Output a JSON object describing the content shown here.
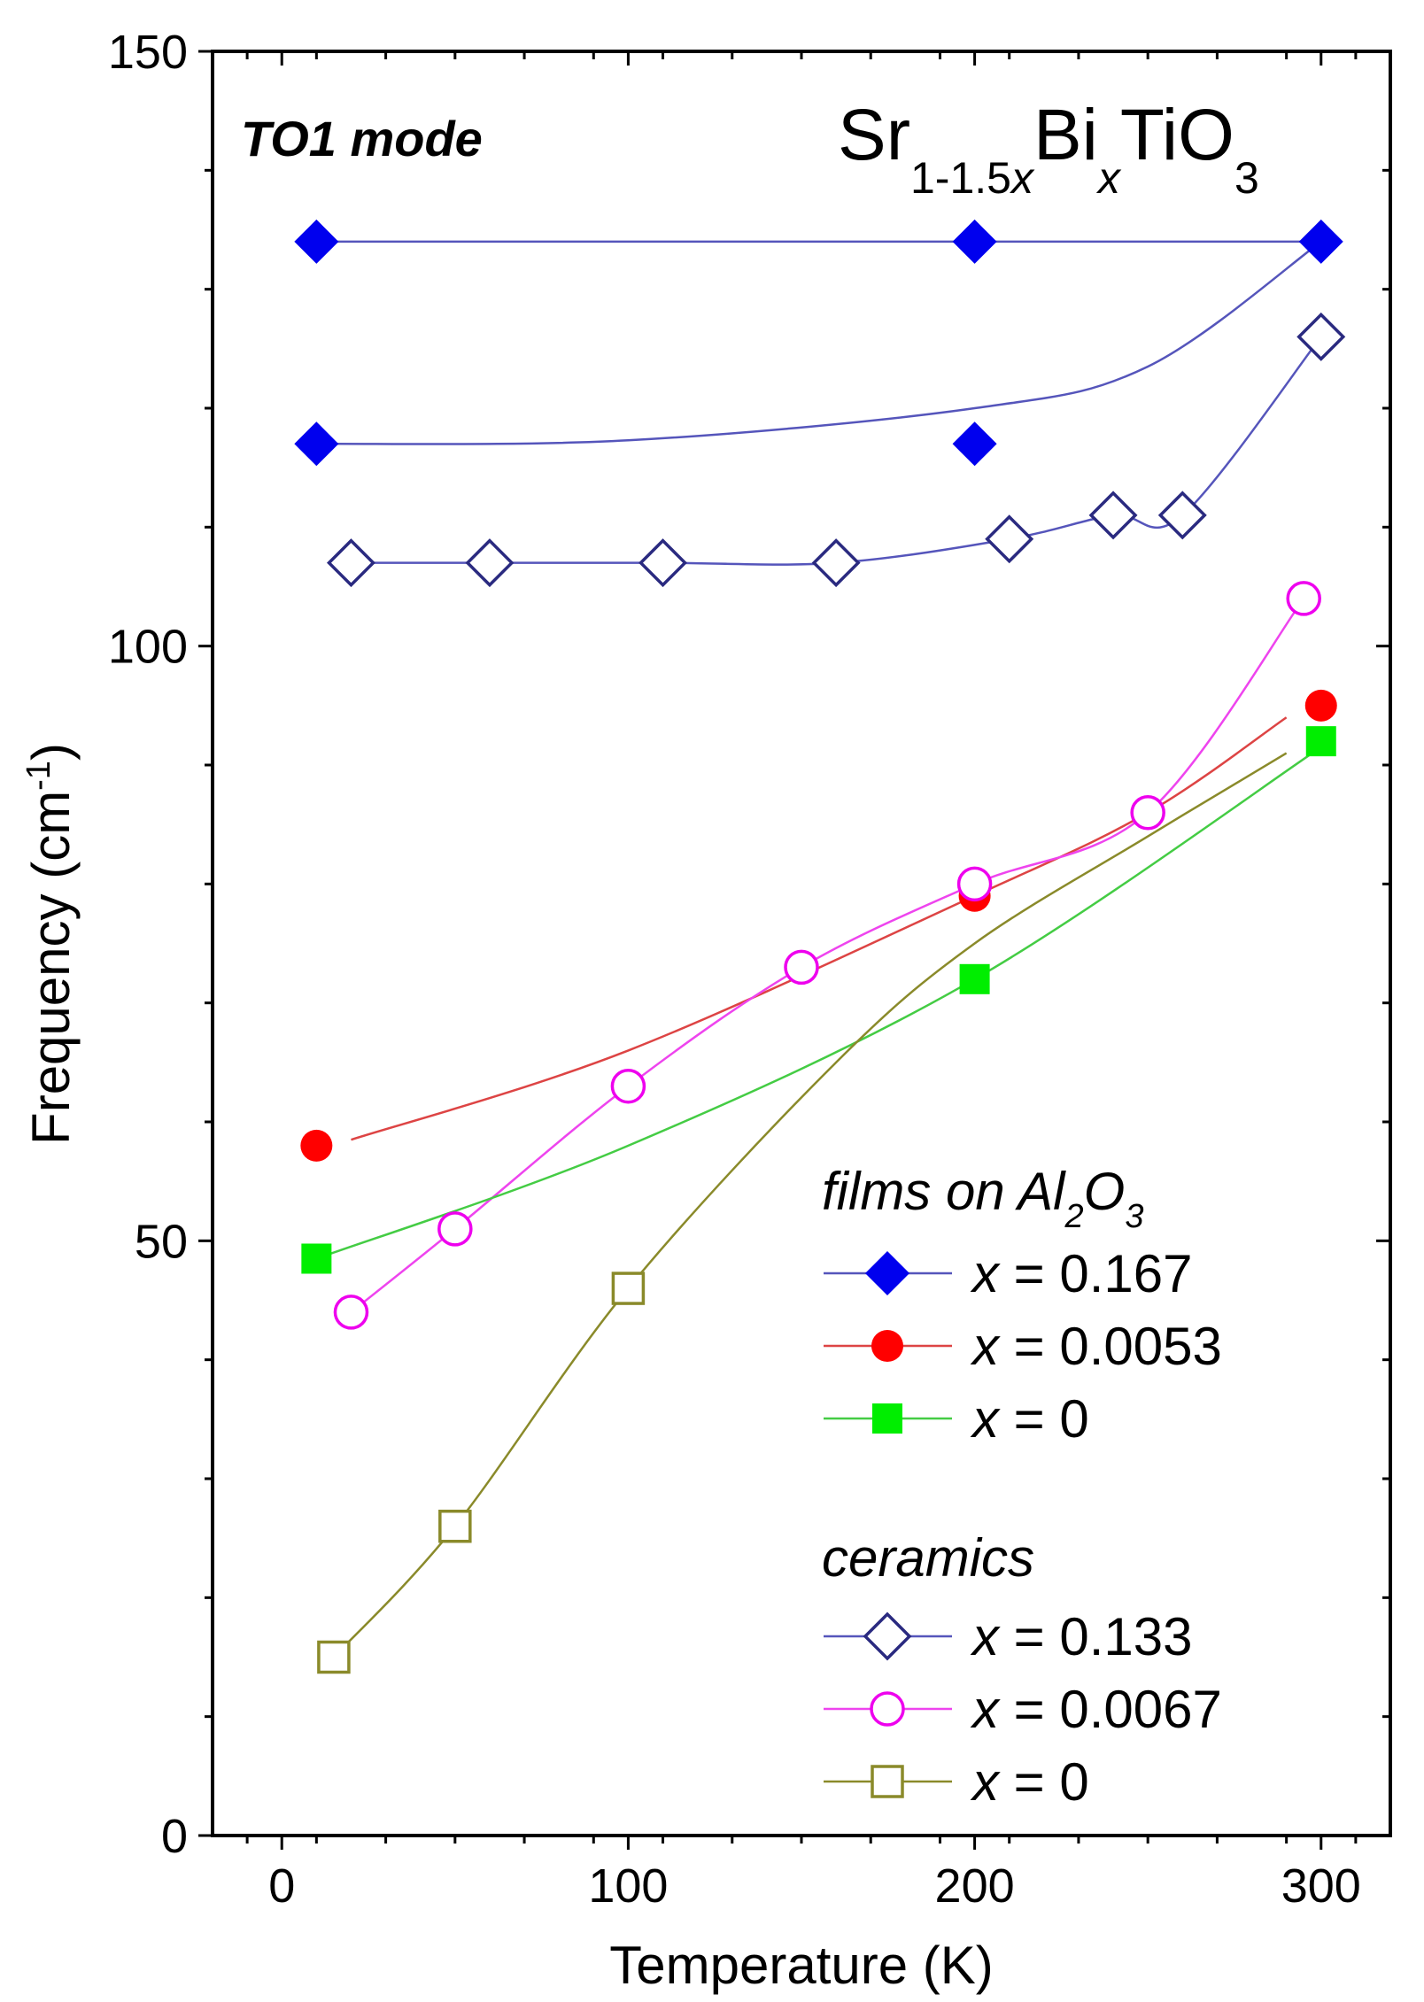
{
  "chart_data": {
    "type": "scatter",
    "title_parts": {
      "base_pre": "Sr",
      "sub1": "1-1.5",
      "sub1_var": "x",
      "base_mid": "Bi",
      "sub2": "x",
      "base_post": "TiO",
      "sub3": "3"
    },
    "mode_label": "TO1 mode",
    "xlabel": "Temperature (K)",
    "ylabel": {
      "pre": "Frequency (cm",
      "sup": "-1",
      "post": ")"
    },
    "xlim": [
      -20,
      320
    ],
    "ylim": [
      0,
      150
    ],
    "x_ticks": [
      "0",
      "100",
      "200",
      "300"
    ],
    "y_ticks": [
      "0",
      "50",
      "100",
      "150"
    ],
    "legend": {
      "films_heading": {
        "pre": "films on Al",
        "sub1": "2",
        "mid": "O",
        "sub2": "3"
      },
      "ceramics_heading": "ceramics",
      "var": "x",
      "entries": [
        {
          "key": "films_0167",
          "text": "= 0.167"
        },
        {
          "key": "films_00053",
          "text": "= 0.0053"
        },
        {
          "key": "films_0",
          "text": "= 0"
        },
        {
          "key": "cer_0133",
          "text": "= 0.133"
        },
        {
          "key": "cer_00067",
          "text": "= 0.0067"
        },
        {
          "key": "cer_0",
          "text": "= 0"
        }
      ]
    },
    "series": [
      {
        "key": "films_0167",
        "group": "films on Al2O3",
        "marker": "diamond",
        "filled": true,
        "color": "#0000ee",
        "line_color": "#5555bb",
        "points": [
          [
            10,
            134
          ],
          [
            200,
            134
          ],
          [
            300,
            134
          ],
          [
            10,
            117
          ],
          [
            200,
            117
          ]
        ],
        "curves": [
          [
            [
              10,
              134
            ],
            [
              300,
              134
            ]
          ],
          [
            [
              10,
              117
            ],
            [
              100,
              117.3
            ],
            [
              200,
              120
            ],
            [
              250,
              123.5
            ],
            [
              300,
              134
            ]
          ]
        ]
      },
      {
        "key": "cer_0133",
        "group": "ceramics",
        "marker": "diamond",
        "filled": false,
        "color": "#2a2a80",
        "line_color": "#5555bb",
        "points": [
          [
            20,
            107
          ],
          [
            60,
            107
          ],
          [
            110,
            107
          ],
          [
            160,
            107
          ],
          [
            210,
            109
          ],
          [
            240,
            111
          ],
          [
            260,
            111
          ],
          [
            300,
            126
          ]
        ],
        "curves": [
          [
            [
              20,
              107
            ],
            [
              60,
              107
            ],
            [
              110,
              107
            ],
            [
              160,
              107
            ],
            [
              210,
              109
            ],
            [
              240,
              111
            ],
            [
              260,
              111
            ],
            [
              300,
              126
            ]
          ]
        ]
      },
      {
        "key": "films_00053",
        "group": "films on Al2O3",
        "marker": "circle",
        "filled": true,
        "color": "#ff0000",
        "line_color": "#dd4444",
        "points": [
          [
            10,
            58
          ],
          [
            200,
            79
          ],
          [
            300,
            95
          ]
        ],
        "curves": [
          [
            [
              20,
              58.5
            ],
            [
              100,
              66
            ],
            [
              200,
              79
            ],
            [
              250,
              86
            ],
            [
              290,
              94
            ]
          ]
        ]
      },
      {
        "key": "cer_00067",
        "group": "ceramics",
        "marker": "circle",
        "filled": false,
        "color": "#ee00ee",
        "line_color": "#ee44ee",
        "points": [
          [
            20,
            44
          ],
          [
            50,
            51
          ],
          [
            100,
            63
          ],
          [
            150,
            73
          ],
          [
            200,
            80
          ],
          [
            250,
            86
          ],
          [
            295,
            104
          ]
        ],
        "curves": [
          [
            [
              20,
              44
            ],
            [
              50,
              51
            ],
            [
              100,
              63
            ],
            [
              150,
              73
            ],
            [
              200,
              80
            ],
            [
              250,
              86
            ],
            [
              295,
              104
            ]
          ]
        ]
      },
      {
        "key": "films_0",
        "group": "films on Al2O3",
        "marker": "square",
        "filled": true,
        "color": "#00ee00",
        "line_color": "#44cc44",
        "points": [
          [
            10,
            48.5
          ],
          [
            200,
            72
          ],
          [
            300,
            92
          ]
        ],
        "curves": [
          [
            [
              10,
              48.5
            ],
            [
              100,
              58
            ],
            [
              200,
              72
            ],
            [
              300,
              91.5
            ]
          ]
        ]
      },
      {
        "key": "cer_0",
        "group": "ceramics",
        "marker": "square",
        "filled": false,
        "color": "#8a8a2a",
        "line_color": "#8a8a2a",
        "points": [
          [
            15,
            15
          ],
          [
            50,
            26
          ],
          [
            100,
            46
          ]
        ],
        "curves": [
          [
            [
              15,
              15
            ],
            [
              50,
              26
            ],
            [
              100,
              46
            ],
            [
              160,
              65
            ],
            [
              200,
              75
            ],
            [
              250,
              84
            ],
            [
              290,
              91
            ]
          ]
        ]
      }
    ]
  }
}
